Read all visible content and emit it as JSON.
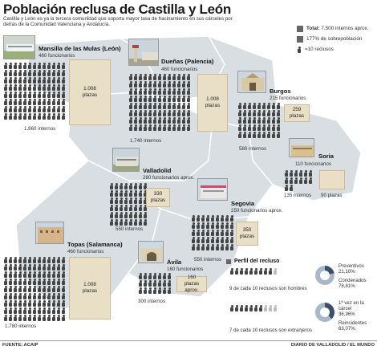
{
  "title": "Población reclusa de Castilla y León",
  "subtitle": "Castilla y León es ya la tercera comunidad que soporta mayor tasa de hacinamiento en sus cárceles por detrás de la Comunidad Valenciana y Andalucía.",
  "legend": {
    "total_label": "Total:",
    "total_value": "7.500 internos aprox.",
    "overpop": "177% de sobrepoblación",
    "icon_note": "=10 reclusos"
  },
  "prisons": [
    {
      "name": "Mansilla de las Mulas (León)",
      "staff": "460 funcionarios",
      "capacity_num": "1.008",
      "capacity_unit": "plazas",
      "inmates": "1.860 internos"
    },
    {
      "name": "Dueñas (Palencia)",
      "staff": "460 funcionarios",
      "capacity_num": "1.008",
      "capacity_unit": "plazas",
      "inmates": "1.740 internos"
    },
    {
      "name": "Burgos",
      "staff": "215 funcionarios",
      "capacity_num": "259",
      "capacity_unit": "plazas",
      "inmates": "580 internos"
    },
    {
      "name": "Soria",
      "staff": "110 funcionarios",
      "capacity_num": "90",
      "capacity_unit": "plazas",
      "inmates": "135 internos"
    },
    {
      "name": "Valladolid",
      "staff": "280 funcionarios aprox.",
      "capacity_num": "330",
      "capacity_unit": "plazas",
      "inmates": "550 internos"
    },
    {
      "name": "Segovia",
      "staff": "250 funcionarios aprox.",
      "capacity_num": "350",
      "capacity_unit": "plazas",
      "inmates": "550 internos"
    },
    {
      "name": "Topas (Salamanca)",
      "staff": "460 funcionarios",
      "capacity_num": "1.008",
      "capacity_unit": "plazas",
      "inmates": "1.780 internos"
    },
    {
      "name": "Ávila",
      "staff": "160 funcionarios",
      "capacity_num": "160",
      "capacity_unit": "plazas aprox.",
      "inmates": "300 internos"
    }
  ],
  "profile": {
    "title": "Perfil del recluso",
    "men_text": "9 de cada 10 reclusos son hombres",
    "foreign_text": "7 de cada 10 reclusos son extranjeros",
    "donut1": {
      "a_label": "Preventivos",
      "a_value": "21,10%",
      "b_label": "Condenados",
      "b_value": "78,81%",
      "fraction": 0.211
    },
    "donut2": {
      "a_label": "1ª vez en la cárcel",
      "a_value": "36,96%",
      "b_label": "Reincidentes",
      "b_value": "63,07%",
      "fraction": 0.3696
    }
  },
  "colors": {
    "map": "#d9dee3",
    "map_border": "#ffffff",
    "capacity": "#e9dfc7",
    "icon": "#444444",
    "donut_dark": "#3b5066",
    "donut_light": "#a9b8c8"
  },
  "footer": {
    "source": "FUENTE: ACAIP",
    "credit": "DIARIO DE VALLADOLID / EL MUNDO"
  }
}
